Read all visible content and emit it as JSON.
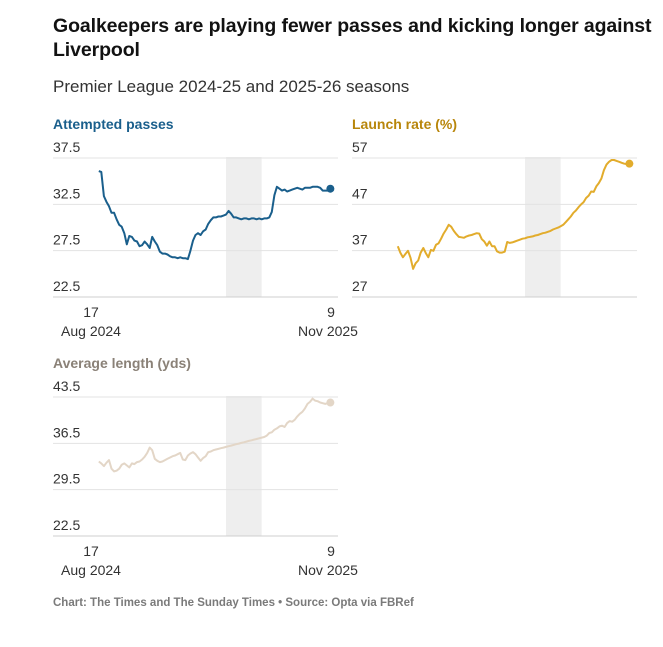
{
  "title": "Goalkeepers are playing fewer passes and kicking longer against Liverpool",
  "subtitle": "Premier League 2024-25 and 2025-26 seasons",
  "footer": "Chart: The Times and The Sunday Times • Source: Opta via FBRef",
  "chart_data": [
    {
      "type": "line",
      "title": "Attempted passes",
      "color": "#1a5f8c",
      "ylim": [
        22.5,
        37.5
      ],
      "yticks": [
        "37.5",
        "32.5",
        "27.5",
        "22.5"
      ],
      "xlim": [
        -3,
        109
      ],
      "xticks": [
        {
          "day": "17",
          "month": "Aug 2024"
        },
        {
          "day": "9",
          "month": "Nov 2025"
        }
      ],
      "x": [
        15,
        16,
        17,
        18,
        19,
        20,
        21,
        22,
        23,
        24,
        25,
        26,
        27,
        28,
        29,
        30,
        31,
        32,
        33,
        34,
        35,
        36,
        37,
        38,
        39,
        40,
        41,
        42,
        43,
        44,
        45,
        46,
        47,
        48,
        49,
        50,
        51,
        52,
        53,
        54,
        55,
        56,
        57,
        58,
        59,
        60,
        61,
        62,
        63,
        64,
        65,
        66,
        67,
        68,
        69,
        70,
        71,
        72,
        73,
        74,
        75,
        76,
        77,
        78,
        79,
        80,
        81,
        82,
        83,
        84,
        85,
        86,
        87,
        88,
        89,
        90,
        91,
        92,
        93,
        94,
        95,
        96,
        97,
        98,
        99,
        100,
        101,
        102,
        103,
        104,
        105,
        106
      ],
      "values": [
        34.9,
        34.8,
        32.2,
        31.6,
        31.1,
        30.4,
        30.4,
        29.7,
        29.1,
        28.9,
        28.2,
        27.0,
        27.9,
        27.8,
        27.4,
        27.3,
        26.8,
        26.9,
        27.3,
        27.0,
        26.6,
        27.8,
        27.3,
        26.9,
        26.2,
        26.0,
        26.0,
        25.9,
        25.7,
        25.6,
        25.6,
        25.5,
        25.6,
        25.5,
        25.5,
        25.4,
        26.3,
        27.4,
        28.0,
        28.2,
        28.0,
        28.4,
        28.6,
        29.2,
        29.6,
        29.9,
        29.9,
        30.0,
        30.0,
        30.1,
        30.2,
        30.6,
        30.3,
        29.9,
        29.9,
        29.8,
        29.7,
        29.8,
        29.8,
        29.7,
        29.8,
        29.8,
        29.7,
        29.8,
        29.7,
        29.8,
        29.8,
        29.9,
        30.5,
        32.3,
        33.2,
        33.0,
        32.8,
        32.9,
        32.7,
        32.8,
        32.9,
        33.0,
        33.1,
        33.0,
        32.9,
        33.1,
        33.1,
        33.1,
        33.2,
        33.2,
        33.2,
        33.1,
        32.8,
        32.8,
        32.8,
        33.0
      ],
      "break": [
        65,
        79
      ]
    },
    {
      "type": "line",
      "title": "Launch rate (%)",
      "color": "#e2ac2c",
      "ylim": [
        27,
        57
      ],
      "yticks": [
        "57",
        "47",
        "37",
        "27"
      ],
      "xlim": [
        -3,
        109
      ],
      "xticks": [],
      "x": [
        15,
        16,
        17,
        18,
        19,
        20,
        21,
        22,
        23,
        24,
        25,
        26,
        27,
        28,
        29,
        30,
        31,
        32,
        33,
        34,
        35,
        36,
        37,
        38,
        39,
        40,
        41,
        42,
        43,
        44,
        45,
        46,
        47,
        48,
        49,
        50,
        51,
        52,
        53,
        54,
        55,
        56,
        57,
        58,
        59,
        60,
        61,
        62,
        63,
        64,
        65,
        66,
        67,
        68,
        69,
        70,
        71,
        72,
        73,
        74,
        75,
        76,
        77,
        78,
        79,
        80,
        81,
        82,
        83,
        84,
        85,
        86,
        87,
        88,
        89,
        90,
        91,
        92,
        93,
        94,
        95,
        96,
        97,
        98,
        99,
        100,
        101,
        102,
        103,
        104,
        105,
        106
      ],
      "values": [
        35.6,
        34.2,
        33.2,
        33.9,
        34.6,
        33.1,
        30.7,
        31.9,
        32.5,
        34.2,
        35.2,
        34.1,
        33.2,
        34.8,
        34.6,
        35.9,
        36.2,
        37.2,
        38.3,
        39.2,
        40.2,
        39.8,
        38.9,
        38.2,
        37.6,
        37.5,
        37.4,
        37.7,
        37.9,
        38.0,
        38.2,
        38.4,
        38.3,
        37.1,
        36.6,
        35.7,
        36.6,
        35.6,
        35.6,
        34.5,
        34.2,
        34.2,
        34.4,
        36.5,
        36.3,
        36.4,
        36.6,
        36.8,
        37.0,
        37.2,
        37.3,
        37.5,
        37.6,
        37.7,
        37.9,
        38.0,
        38.2,
        38.4,
        38.5,
        38.7,
        38.9,
        39.2,
        39.4,
        39.6,
        39.9,
        40.2,
        40.8,
        41.4,
        42.0,
        42.8,
        43.3,
        44.0,
        44.6,
        45.1,
        46.0,
        46.5,
        47.4,
        47.3,
        48.5,
        49.2,
        50.2,
        52.0,
        53.2,
        53.8,
        54.2,
        54.2,
        54.0,
        53.8,
        53.6,
        53.4,
        53.3,
        53.4
      ],
      "break": [
        65,
        79
      ]
    },
    {
      "type": "line",
      "title": "Average length (yds)",
      "color": "#e3d6c7",
      "ylim": [
        22.5,
        43.5
      ],
      "yticks": [
        "43.5",
        "36.5",
        "29.5",
        "22.5"
      ],
      "xlim": [
        -3,
        109
      ],
      "xticks": [
        {
          "day": "17",
          "month": "Aug 2024"
        },
        {
          "day": "9",
          "month": "Nov 2025"
        }
      ],
      "x": [
        15,
        16,
        17,
        18,
        19,
        20,
        21,
        22,
        23,
        24,
        25,
        26,
        27,
        28,
        29,
        30,
        31,
        32,
        33,
        34,
        35,
        36,
        37,
        38,
        39,
        40,
        41,
        42,
        43,
        44,
        45,
        46,
        47,
        48,
        49,
        50,
        51,
        52,
        53,
        54,
        55,
        56,
        57,
        58,
        59,
        60,
        61,
        62,
        63,
        64,
        65,
        66,
        67,
        68,
        69,
        70,
        71,
        72,
        73,
        74,
        75,
        76,
        77,
        78,
        79,
        80,
        81,
        82,
        83,
        84,
        85,
        86,
        87,
        88,
        89,
        90,
        91,
        92,
        93,
        94,
        95,
        96,
        97,
        98,
        99,
        100,
        101,
        102,
        103,
        104,
        105,
        106
      ],
      "values": [
        32.1,
        31.8,
        31.4,
        31.9,
        32.3,
        31.0,
        30.6,
        30.7,
        31.0,
        31.6,
        31.8,
        31.5,
        31.2,
        31.8,
        31.7,
        32.0,
        32.1,
        32.4,
        32.8,
        33.4,
        34.2,
        33.8,
        32.5,
        32.2,
        32.0,
        32.1,
        32.3,
        32.5,
        32.7,
        32.9,
        33.0,
        33.2,
        33.4,
        32.4,
        32.3,
        33.0,
        33.3,
        33.5,
        33.2,
        32.7,
        32.2,
        32.6,
        32.9,
        33.5,
        33.6,
        33.8,
        33.9,
        34.0,
        34.1,
        34.2,
        34.3,
        34.4,
        34.5,
        34.6,
        34.7,
        34.8,
        34.9,
        35.0,
        35.1,
        35.2,
        35.3,
        35.4,
        35.5,
        35.6,
        35.7,
        35.8,
        36.0,
        36.4,
        36.5,
        36.9,
        37.1,
        37.4,
        37.5,
        37.3,
        37.9,
        38.2,
        38.1,
        38.4,
        38.9,
        39.3,
        39.6,
        40.1,
        40.8,
        41.1,
        41.6,
        41.3,
        41.2,
        41.0,
        40.9,
        40.8,
        40.9,
        41.0
      ],
      "break": [
        65,
        79
      ]
    }
  ]
}
